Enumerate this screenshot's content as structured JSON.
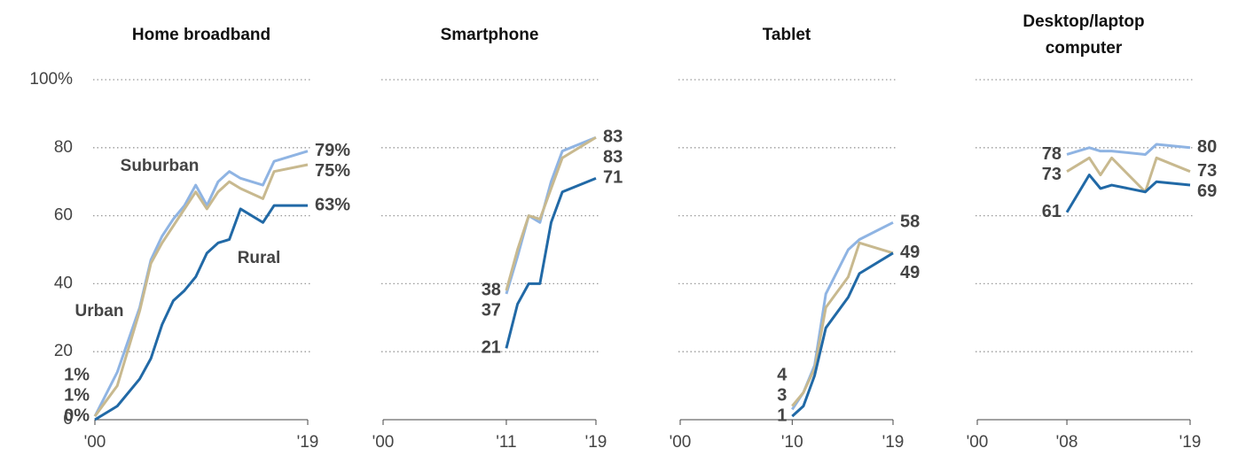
{
  "chart_data": [
    {
      "type": "line",
      "title": "Home broadband",
      "xlim": [
        2000,
        2019
      ],
      "xticks": [
        {
          "value": 2000,
          "label": "'00"
        },
        {
          "value": 2019,
          "label": "'19"
        }
      ],
      "ylim": [
        0,
        100
      ],
      "yticks": [
        0,
        20,
        40,
        60,
        80,
        {
          "value": 100,
          "label": "100%"
        }
      ],
      "grid": true,
      "x": [
        2000,
        2002,
        2004,
        2005,
        2006,
        2007,
        2008,
        2009,
        2010,
        2011,
        2012,
        2013,
        2015,
        2016,
        2019
      ],
      "series": [
        {
          "name": "Suburban",
          "color": "#8fb4e3",
          "values": [
            1,
            14,
            33,
            47,
            54,
            59,
            63,
            69,
            63,
            70,
            73,
            71,
            69,
            76,
            79
          ],
          "value_labels": [
            "1%",
            null,
            null,
            null,
            null,
            null,
            null,
            null,
            null,
            null,
            null,
            null,
            null,
            null,
            "79%"
          ]
        },
        {
          "name": "Urban",
          "color": "#c8b98f",
          "values": [
            1,
            10,
            32,
            46,
            52,
            57,
            62,
            67,
            62,
            67,
            70,
            68,
            65,
            73,
            75
          ],
          "value_labels": [
            "1%",
            null,
            null,
            null,
            null,
            null,
            null,
            null,
            null,
            null,
            null,
            null,
            null,
            null,
            "75%"
          ]
        },
        {
          "name": "Rural",
          "color": "#2169a6",
          "values": [
            0,
            4,
            12,
            18,
            28,
            35,
            38,
            42,
            49,
            52,
            53,
            62,
            58,
            63,
            63
          ],
          "value_labels": [
            "0%",
            null,
            null,
            null,
            null,
            null,
            null,
            null,
            null,
            null,
            null,
            null,
            null,
            null,
            "63%"
          ]
        }
      ]
    },
    {
      "type": "line",
      "title": "Smartphone",
      "xlim": [
        2000,
        2019
      ],
      "xticks": [
        {
          "value": 2000,
          "label": "'00"
        },
        {
          "value": 2011,
          "label": "'11"
        },
        {
          "value": 2019,
          "label": "'19"
        }
      ],
      "x": [
        2011,
        2012,
        2013,
        2014,
        2015,
        2016,
        2019
      ],
      "series": [
        {
          "color": "#8fb4e3",
          "values": [
            37,
            48,
            60,
            58,
            70,
            79,
            83
          ]
        },
        {
          "color": "#c8b98f",
          "values": [
            38,
            50,
            60,
            59,
            68,
            77,
            83
          ]
        },
        {
          "color": "#2169a6",
          "values": [
            21,
            34,
            40,
            40,
            58,
            67,
            71
          ]
        }
      ]
    },
    {
      "type": "line",
      "title": "Tablet",
      "xlim": [
        2000,
        2019
      ],
      "xticks": [
        {
          "value": 2000,
          "label": "'00"
        },
        {
          "value": 2010,
          "label": "'10"
        },
        {
          "value": 2019,
          "label": "'19"
        }
      ],
      "x": [
        2010,
        2011,
        2012,
        2013,
        2015,
        2016,
        2019
      ],
      "series": [
        {
          "color": "#8fb4e3",
          "values": [
            3,
            8,
            16,
            37,
            50,
            53,
            58
          ]
        },
        {
          "color": "#c8b98f",
          "values": [
            4,
            8,
            15,
            33,
            42,
            52,
            49
          ]
        },
        {
          "color": "#2169a6",
          "values": [
            1,
            4,
            13,
            27,
            36,
            43,
            49
          ]
        }
      ]
    },
    {
      "type": "line",
      "title": "Desktop/laptop computer",
      "xlim": [
        2000,
        2019
      ],
      "xticks": [
        {
          "value": 2000,
          "label": "'00"
        },
        {
          "value": 2008,
          "label": "'08"
        },
        {
          "value": 2019,
          "label": "'19"
        }
      ],
      "x": [
        2008,
        2010,
        2011,
        2012,
        2015,
        2016,
        2019
      ],
      "series": [
        {
          "color": "#8fb4e3",
          "values": [
            78,
            80,
            79,
            79,
            78,
            81,
            80
          ]
        },
        {
          "color": "#c8b98f",
          "values": [
            73,
            77,
            72,
            77,
            67,
            77,
            73
          ]
        },
        {
          "color": "#2169a6",
          "values": [
            61,
            72,
            68,
            69,
            67,
            70,
            69
          ]
        }
      ]
    }
  ]
}
